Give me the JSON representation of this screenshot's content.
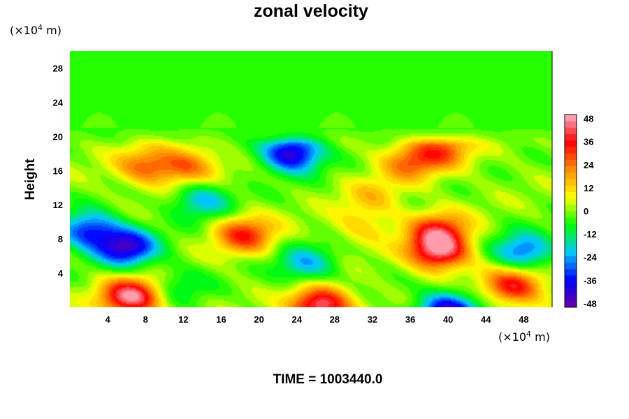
{
  "chart_data": {
    "type": "heatmap",
    "title": "zonal velocity",
    "xlabel": "",
    "ylabel": "Height",
    "x_unit_label": {
      "prefix": "(×10",
      "sup": "4",
      "suffix": " m)"
    },
    "y_unit_label": {
      "prefix": "(×10",
      "sup": "4",
      "suffix": " m)"
    },
    "xlim": [
      0,
      51
    ],
    "ylim": [
      0,
      30
    ],
    "x_ticks": [
      4,
      8,
      12,
      16,
      20,
      24,
      28,
      32,
      36,
      40,
      44,
      48
    ],
    "y_ticks": [
      4,
      8,
      12,
      16,
      20,
      24,
      28
    ],
    "colorbar": {
      "min": -50,
      "max": 50,
      "ticks": [
        48,
        36,
        24,
        12,
        0,
        -12,
        -24,
        -36,
        -48
      ],
      "levels": 30,
      "colors": [
        "#6a00a8",
        "#0000ff",
        "#00c8ff",
        "#00ff00",
        "#ffff00",
        "#ff8c00",
        "#ff0000",
        "#ffb0c0"
      ]
    },
    "field_features": [
      {
        "x": 6.5,
        "y": 1.2,
        "value": 48
      },
      {
        "x": 26.5,
        "y": 0.2,
        "value": 46
      },
      {
        "x": 39,
        "y": 6.5,
        "value": 44
      },
      {
        "x": 47,
        "y": 2.5,
        "value": 36
      },
      {
        "x": 18.5,
        "y": 8.5,
        "value": 32
      },
      {
        "x": 8,
        "y": 16.5,
        "value": 24
      },
      {
        "x": 12.5,
        "y": 16.5,
        "value": 24
      },
      {
        "x": 36,
        "y": 17,
        "value": 24
      },
      {
        "x": 39.5,
        "y": 18.5,
        "value": 24
      },
      {
        "x": 39,
        "y": 9,
        "value": 30
      },
      {
        "x": 6,
        "y": 7,
        "value": -42
      },
      {
        "x": 2,
        "y": 9,
        "value": -34
      },
      {
        "x": 23.5,
        "y": 18,
        "value": -44
      },
      {
        "x": 40,
        "y": -0.5,
        "value": -44
      },
      {
        "x": 48,
        "y": 6.5,
        "value": -30
      },
      {
        "x": 25,
        "y": 5,
        "value": -22
      },
      {
        "x": 32,
        "y": 13,
        "value": 12
      },
      {
        "x": 14,
        "y": 12.5,
        "value": -22
      },
      {
        "x": 11.5,
        "y": 2.5,
        "value": -12
      },
      {
        "x": 31,
        "y": 9.5,
        "value": 12
      }
    ]
  },
  "footer": {
    "time_label": "TIME = 1003440.0"
  }
}
